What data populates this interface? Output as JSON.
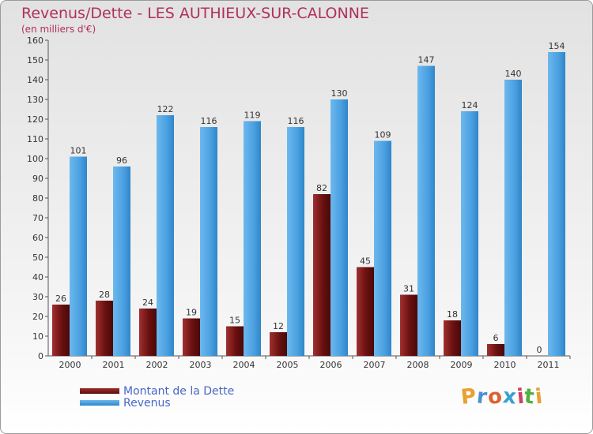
{
  "chart_data": {
    "type": "bar",
    "title": "Revenus/Dette - LES AUTHIEUX-SUR-CALONNE",
    "subtitle": "(en milliers d'€)",
    "categories": [
      "2000",
      "2001",
      "2002",
      "2003",
      "2004",
      "2005",
      "2006",
      "2007",
      "2008",
      "2009",
      "2010",
      "2011"
    ],
    "series": [
      {
        "name": "Montant de la Dette",
        "color": "#7a1a1a",
        "values": [
          26,
          28,
          24,
          19,
          15,
          12,
          82,
          45,
          31,
          18,
          6,
          0
        ]
      },
      {
        "name": "Revenus",
        "color": "#4aa0e0",
        "values": [
          101,
          96,
          122,
          116,
          119,
          116,
          130,
          109,
          147,
          124,
          140,
          154
        ]
      }
    ],
    "ylim": [
      0,
      160
    ],
    "yticks": [
      0,
      10,
      20,
      30,
      40,
      50,
      60,
      70,
      80,
      90,
      100,
      110,
      120,
      130,
      140,
      150,
      160
    ],
    "grid": false,
    "legend_position": "bottom-left"
  },
  "logo": {
    "text": "Proxiti",
    "colors": [
      "#e8a030",
      "#4a90d0",
      "#e06030",
      "#3aa0d0",
      "#d04060",
      "#50b040",
      "#e8a030"
    ]
  }
}
